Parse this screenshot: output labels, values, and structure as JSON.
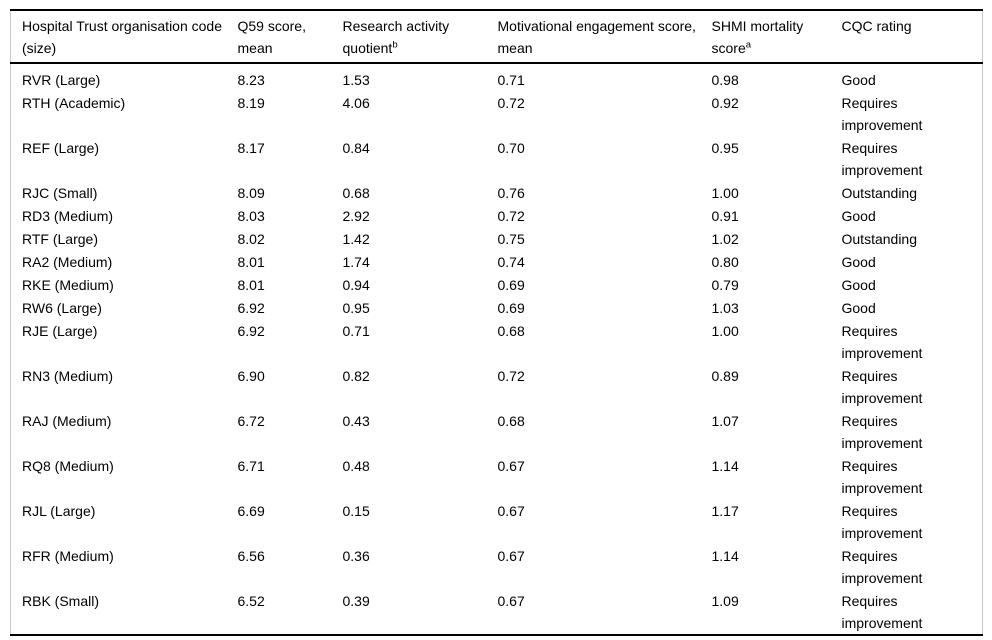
{
  "chart_data": {
    "type": "table",
    "title": "Hospital Trust scores table",
    "columns": [
      {
        "label": "Hospital Trust organisation code (size)",
        "sup": ""
      },
      {
        "label": "Q59 score, mean",
        "sup": ""
      },
      {
        "label": "Research activity quotient",
        "sup": "b"
      },
      {
        "label": "Motivational engagement score, mean",
        "sup": ""
      },
      {
        "label": "SHMI mortality score",
        "sup": "a"
      },
      {
        "label": "CQC rating",
        "sup": ""
      }
    ],
    "rows": [
      [
        "RVR (Large)",
        "8.23",
        "1.53",
        "0.71",
        "0.98",
        "Good"
      ],
      [
        "RTH (Academic)",
        "8.19",
        "4.06",
        "0.72",
        "0.92",
        "Requires improvement"
      ],
      [
        "REF (Large)",
        "8.17",
        "0.84",
        "0.70",
        "0.95",
        "Requires improvement"
      ],
      [
        "RJC (Small)",
        "8.09",
        "0.68",
        "0.76",
        "1.00",
        "Outstanding"
      ],
      [
        "RD3 (Medium)",
        "8.03",
        "2.92",
        "0.72",
        "0.91",
        "Good"
      ],
      [
        "RTF (Large)",
        "8.02",
        "1.42",
        "0.75",
        "1.02",
        "Outstanding"
      ],
      [
        "RA2 (Medium)",
        "8.01",
        "1.74",
        "0.74",
        "0.80",
        "Good"
      ],
      [
        "RKE (Medium)",
        "8.01",
        "0.94",
        "0.69",
        "0.79",
        "Good"
      ],
      [
        "RW6 (Large)",
        "6.92",
        "0.95",
        "0.69",
        "1.03",
        "Good"
      ],
      [
        "RJE (Large)",
        "6.92",
        "0.71",
        "0.68",
        "1.00",
        "Requires improvement"
      ],
      [
        "RN3 (Medium)",
        "6.90",
        "0.82",
        "0.72",
        "0.89",
        "Requires improvement"
      ],
      [
        "RAJ (Medium)",
        "6.72",
        "0.43",
        "0.68",
        "1.07",
        "Requires improvement"
      ],
      [
        "RQ8 (Medium)",
        "6.71",
        "0.48",
        "0.67",
        "1.14",
        "Requires improvement"
      ],
      [
        "RJL (Large)",
        "6.69",
        "0.15",
        "0.67",
        "1.17",
        "Requires improvement"
      ],
      [
        "RFR (Medium)",
        "6.56",
        "0.36",
        "0.67",
        "1.14",
        "Requires improvement"
      ],
      [
        "RBK (Small)",
        "6.52",
        "0.39",
        "0.67",
        "1.09",
        "Requires improvement"
      ]
    ],
    "colors": {
      "text": "#000000",
      "rule": "#000000",
      "side_border": "#c9c9c9",
      "background": "#ffffff"
    },
    "layout": {
      "grid": "horizontal rules only (top, header, bottom)",
      "header_bold": false
    }
  }
}
